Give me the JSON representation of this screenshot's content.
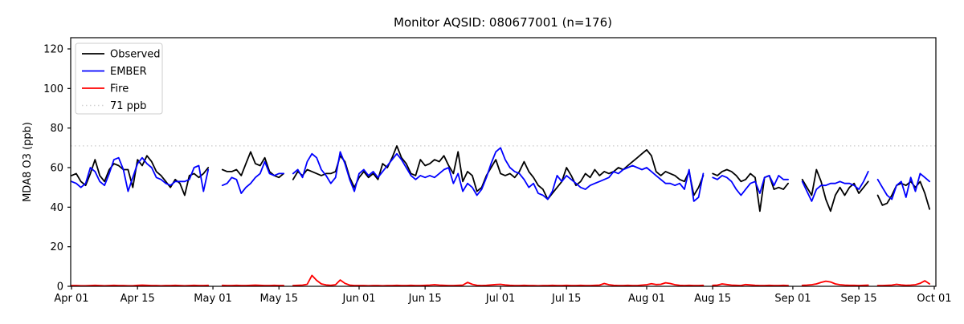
{
  "figure": {
    "title": "Monitor AQSID: 080677001 (n=176)",
    "ylabel": "MDA8 O3 (ppb)"
  },
  "legend": {
    "items": [
      {
        "label": "Observed",
        "color": "#000000",
        "style": "solid"
      },
      {
        "label": "EMBER",
        "color": "#0000ff",
        "style": "solid"
      },
      {
        "label": "Fire",
        "color": "#ff0000",
        "style": "solid"
      },
      {
        "label": "71 ppb",
        "color": "#d3d3d3",
        "style": "dotted"
      }
    ]
  },
  "chart_data": {
    "type": "line",
    "title": "Monitor AQSID: 080677001 (n=176)",
    "xlabel": "",
    "ylabel": "MDA8 O3 (ppb)",
    "x_unit": "daily values, day index 0 = Apr 01, last data point = Sep 30; null = missing day",
    "ylim": [
      0,
      125.7
    ],
    "yticks": [
      0,
      20,
      40,
      60,
      80,
      100,
      120
    ],
    "xticks": [
      {
        "day": 0,
        "label": "Apr 01"
      },
      {
        "day": 14,
        "label": "Apr 15"
      },
      {
        "day": 30,
        "label": "May 01"
      },
      {
        "day": 44,
        "label": "May 15"
      },
      {
        "day": 61,
        "label": "Jun 01"
      },
      {
        "day": 75,
        "label": "Jun 15"
      },
      {
        "day": 91,
        "label": "Jul 01"
      },
      {
        "day": 105,
        "label": "Jul 15"
      },
      {
        "day": 122,
        "label": "Aug 01"
      },
      {
        "day": 136,
        "label": "Aug 15"
      },
      {
        "day": 153,
        "label": "Sep 01"
      },
      {
        "day": 167,
        "label": "Sep 15"
      },
      {
        "day": 183,
        "label": "Oct 01"
      }
    ],
    "threshold": {
      "value": 71,
      "label": "71 ppb",
      "color": "#d3d3d3",
      "style": "dotted"
    },
    "grid": false,
    "legend_position": "upper-left",
    "series": [
      {
        "name": "Observed",
        "color": "#000000",
        "values": [
          56,
          57,
          53,
          51,
          57,
          64,
          56,
          53,
          59,
          62,
          61,
          59,
          59,
          50,
          64,
          61,
          66,
          63,
          58,
          56,
          53,
          50,
          54,
          52,
          46,
          56,
          57,
          55,
          57,
          60,
          null,
          null,
          59,
          58,
          58,
          59,
          56,
          62,
          68,
          62,
          61,
          65,
          58,
          56,
          55,
          57,
          null,
          54,
          58,
          56,
          59,
          58,
          57,
          56,
          57,
          57,
          58,
          66,
          63,
          55,
          50,
          55,
          58,
          55,
          57,
          54,
          62,
          60,
          65,
          71,
          65,
          62,
          57,
          56,
          64,
          61,
          62,
          64,
          63,
          66,
          61,
          57,
          68,
          53,
          58,
          56,
          48,
          50,
          56,
          60,
          64,
          57,
          56,
          57,
          55,
          58,
          63,
          58,
          55,
          51,
          49,
          44,
          47,
          50,
          53,
          60,
          56,
          51,
          53,
          57,
          55,
          59,
          56,
          58,
          57,
          58,
          60,
          59,
          61,
          63,
          65,
          67,
          69,
          66,
          58,
          56,
          58,
          57,
          56,
          54,
          53,
          58,
          46,
          50,
          56,
          null,
          57,
          56,
          58,
          59,
          58,
          56,
          53,
          54,
          57,
          55,
          38,
          55,
          56,
          49,
          50,
          49,
          52,
          null,
          null,
          54,
          50,
          46,
          59,
          53,
          44,
          38,
          46,
          50,
          46,
          50,
          52,
          47,
          50,
          53,
          null,
          46,
          41,
          42,
          46,
          51,
          52,
          51,
          53,
          50,
          53,
          47,
          39
        ]
      },
      {
        "name": "EMBER",
        "color": "#0000ff",
        "values": [
          53,
          52,
          50,
          52,
          60,
          58,
          53,
          51,
          57,
          64,
          65,
          59,
          48,
          55,
          62,
          65,
          62,
          60,
          55,
          54,
          52,
          51,
          53,
          53,
          53,
          54,
          60,
          61,
          48,
          59,
          null,
          null,
          51,
          52,
          55,
          54,
          47,
          50,
          52,
          55,
          57,
          63,
          57,
          56,
          57,
          57,
          null,
          57,
          59,
          55,
          63,
          67,
          65,
          59,
          56,
          52,
          55,
          68,
          62,
          54,
          48,
          57,
          59,
          56,
          58,
          55,
          58,
          61,
          64,
          67,
          64,
          60,
          56,
          54,
          56,
          55,
          56,
          55,
          57,
          59,
          60,
          52,
          57,
          48,
          52,
          50,
          46,
          49,
          55,
          62,
          68,
          70,
          64,
          60,
          58,
          57,
          54,
          50,
          52,
          47,
          46,
          44,
          48,
          56,
          53,
          56,
          54,
          52,
          50,
          49,
          51,
          52,
          53,
          54,
          55,
          58,
          57,
          59,
          60,
          61,
          60,
          59,
          60,
          58,
          56,
          54,
          52,
          52,
          51,
          52,
          49,
          59,
          43,
          45,
          57,
          null,
          55,
          54,
          56,
          55,
          53,
          49,
          46,
          49,
          52,
          53,
          47,
          55,
          56,
          51,
          56,
          54,
          54,
          null,
          null,
          53,
          48,
          43,
          49,
          51,
          51,
          52,
          52,
          53,
          52,
          52,
          51,
          49,
          53,
          58,
          null,
          54,
          50,
          46,
          44,
          51,
          53,
          45,
          55,
          48,
          57,
          55,
          53
        ]
      },
      {
        "name": "Fire",
        "color": "#ff0000",
        "values": [
          0.4,
          0.4,
          0.3,
          0.3,
          0.4,
          0.5,
          0.4,
          0.3,
          0.4,
          0.5,
          0.4,
          0.4,
          0.3,
          0.3,
          0.5,
          0.6,
          0.5,
          0.4,
          0.4,
          0.3,
          0.4,
          0.4,
          0.5,
          0.4,
          0.3,
          0.4,
          0.5,
          0.4,
          0.4,
          0.5,
          null,
          null,
          0.5,
          0.4,
          0.4,
          0.5,
          0.4,
          0.4,
          0.5,
          0.6,
          0.5,
          0.4,
          0.4,
          0.5,
          0.4,
          0.4,
          null,
          0.4,
          0.5,
          0.6,
          1.0,
          5.5,
          3.0,
          1.2,
          0.7,
          0.5,
          0.8,
          3.2,
          1.5,
          0.6,
          0.4,
          0.4,
          0.4,
          0.3,
          0.4,
          0.4,
          0.3,
          0.4,
          0.4,
          0.5,
          0.4,
          0.4,
          0.5,
          0.4,
          0.4,
          0.5,
          0.6,
          0.8,
          0.6,
          0.5,
          0.4,
          0.4,
          0.5,
          0.6,
          2.0,
          1.0,
          0.5,
          0.4,
          0.5,
          0.7,
          0.9,
          1.0,
          0.7,
          0.5,
          0.4,
          0.4,
          0.5,
          0.4,
          0.4,
          0.3,
          0.4,
          0.4,
          0.5,
          0.4,
          0.4,
          0.5,
          0.4,
          0.4,
          0.5,
          0.4,
          0.4,
          0.5,
          0.6,
          1.4,
          0.8,
          0.5,
          0.4,
          0.4,
          0.5,
          0.4,
          0.4,
          0.6,
          0.8,
          1.3,
          0.9,
          1.0,
          1.8,
          1.4,
          0.8,
          0.5,
          0.4,
          0.5,
          0.4,
          0.4,
          0.5,
          null,
          0.5,
          0.6,
          1.2,
          0.9,
          0.6,
          0.5,
          0.4,
          0.9,
          0.7,
          0.5,
          0.4,
          0.4,
          0.5,
          0.4,
          0.4,
          0.5,
          0.4,
          null,
          null,
          0.5,
          0.6,
          0.8,
          1.2,
          2.0,
          2.6,
          2.2,
          1.2,
          0.8,
          0.6,
          0.5,
          0.5,
          0.4,
          0.5,
          0.6,
          null,
          0.4,
          0.4,
          0.5,
          0.6,
          1.0,
          0.7,
          0.5,
          0.6,
          0.8,
          1.5,
          2.8,
          1.2
        ]
      }
    ]
  }
}
